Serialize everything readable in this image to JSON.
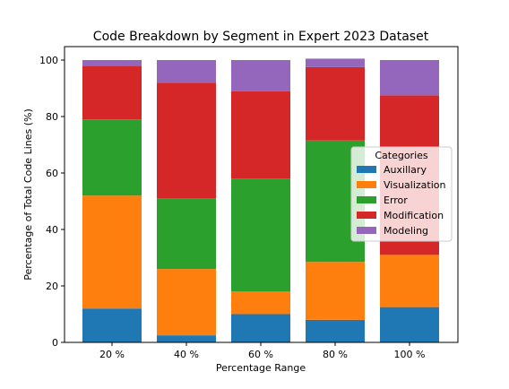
{
  "chart_data": {
    "type": "bar",
    "stacked": true,
    "title": "Code Breakdown by Segment in Expert 2023 Dataset",
    "xlabel": "Percentage Range",
    "ylabel": "Percentage of Total Code Lines (%)",
    "categories": [
      "20 %",
      "40 %",
      "60 %",
      "80 %",
      "100 %"
    ],
    "ylim": [
      0,
      100
    ],
    "yticks": [
      0,
      20,
      40,
      60,
      80,
      100
    ],
    "grid": false,
    "legend": {
      "title": "Categories",
      "position": "center-right"
    },
    "series": [
      {
        "name": "Auxillary",
        "color": "#1f77b4",
        "values": [
          12,
          2.5,
          10,
          8,
          12.5
        ]
      },
      {
        "name": "Visualization",
        "color": "#ff7f0e",
        "values": [
          40,
          23.5,
          8,
          20.5,
          18.5
        ]
      },
      {
        "name": "Error",
        "color": "#2ca02c",
        "values": [
          27,
          25,
          40,
          43,
          0
        ]
      },
      {
        "name": "Modification",
        "color": "#d62728",
        "values": [
          19,
          41,
          31,
          26,
          56.5
        ]
      },
      {
        "name": "Modeling",
        "color": "#9467bd",
        "values": [
          2,
          8,
          11,
          3,
          12.5
        ]
      }
    ]
  }
}
